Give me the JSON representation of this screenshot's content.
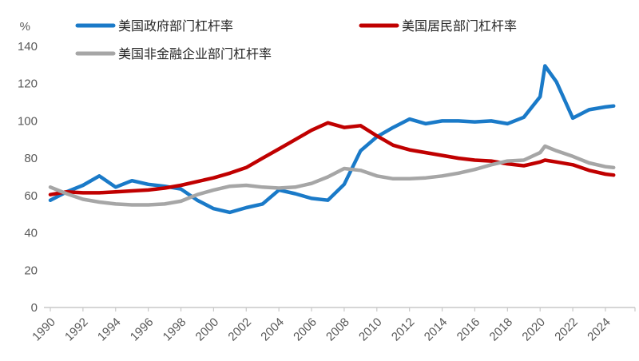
{
  "chart_data": {
    "type": "line",
    "title": "",
    "unit_label": "%",
    "grid": false,
    "legend_position": "top",
    "x_axis": {
      "tick_years": [
        1990,
        1992,
        1994,
        1996,
        1998,
        2000,
        2002,
        2004,
        2006,
        2008,
        2010,
        2012,
        2014,
        2016,
        2018,
        2020,
        2022,
        2024
      ]
    },
    "y_axis": {
      "min": 0,
      "max": 140,
      "step": 20,
      "ticks": [
        0,
        20,
        40,
        60,
        80,
        100,
        120,
        140
      ]
    },
    "x": [
      1990,
      1991,
      1992,
      1993,
      1994,
      1995,
      1996,
      1997,
      1998,
      1999,
      2000,
      2001,
      2002,
      2003,
      2004,
      2005,
      2006,
      2007,
      2008,
      2009,
      2010,
      2011,
      2012,
      2013,
      2014,
      2015,
      2016,
      2017,
      2018,
      2019,
      2020,
      2020.3,
      2021,
      2022,
      2023,
      2024,
      2024.5
    ],
    "series": [
      {
        "name": "美国政府部门杠杆率",
        "color": "#1A7AC8",
        "values": [
          57.5,
          62,
          65.5,
          70.5,
          64.5,
          68,
          66,
          65,
          63.5,
          57.5,
          53,
          51,
          53.5,
          55.5,
          63,
          61,
          58.5,
          57.5,
          66,
          84,
          91.5,
          96.5,
          101,
          98.5,
          100,
          100,
          99.5,
          100,
          98.5,
          102,
          113,
          129.5,
          121,
          101.5,
          106,
          107.5,
          108
        ]
      },
      {
        "name": "美国居民部门杠杆率",
        "color": "#C00000",
        "values": [
          60.5,
          62,
          61.5,
          61.5,
          62,
          62.5,
          63,
          64,
          65.5,
          67.5,
          69.5,
          72,
          75,
          80,
          85,
          90,
          95,
          99,
          96.5,
          97.5,
          92,
          87,
          84.5,
          83,
          81.5,
          80,
          79,
          78.5,
          77,
          76,
          78,
          79,
          78,
          76.5,
          73.5,
          71.5,
          71
        ]
      },
      {
        "name": "美国非金融企业部门杠杆率",
        "color": "#A6A6A6",
        "values": [
          64.5,
          61,
          58,
          56.5,
          55.5,
          55,
          55,
          55.5,
          57,
          60.5,
          63,
          65,
          65.5,
          64.5,
          64,
          64.5,
          66.5,
          70,
          74.5,
          73.5,
          70.5,
          69,
          69,
          69.5,
          70.5,
          72,
          74,
          76.5,
          78.5,
          79,
          83,
          86.5,
          84,
          81,
          77.5,
          75.5,
          75
        ]
      }
    ],
    "style": {
      "axis_color": "#C9C9C9",
      "tick_label_color": "#595959",
      "legend_text_color": "#262626",
      "background": "#FFFFFF"
    }
  }
}
